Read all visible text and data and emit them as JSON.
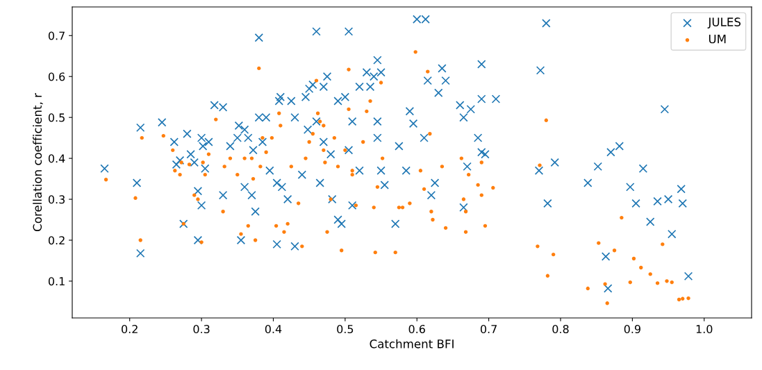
{
  "chart_data": {
    "type": "scatter",
    "xlabel": "Catchment BFI",
    "ylabel": "Corellation coefficient, r",
    "xlim": [
      0.12,
      1.066
    ],
    "ylim": [
      0.01,
      0.77
    ],
    "xticks": [
      {
        "value": 0.2,
        "label": "0.2"
      },
      {
        "value": 0.3,
        "label": "0.3"
      },
      {
        "value": 0.4,
        "label": "0.4"
      },
      {
        "value": 0.5,
        "label": "0.5"
      },
      {
        "value": 0.6,
        "label": "0.6"
      },
      {
        "value": 0.7,
        "label": "0.7"
      },
      {
        "value": 0.8,
        "label": "0.8"
      },
      {
        "value": 0.9,
        "label": "0.9"
      },
      {
        "value": 1.0,
        "label": "1.0"
      }
    ],
    "yticks": [
      0.1,
      0.2,
      0.3,
      0.4,
      0.5,
      0.6,
      0.7
    ],
    "grid": false,
    "legend": "top right",
    "series": [
      {
        "name": "JULES",
        "color": "#1f77b4",
        "marker": "cross",
        "x": [
          0.165,
          0.21,
          0.215,
          0.215,
          0.245,
          0.262,
          0.265,
          0.27,
          0.275,
          0.28,
          0.285,
          0.29,
          0.295,
          0.295,
          0.3,
          0.3,
          0.302,
          0.305,
          0.31,
          0.318,
          0.33,
          0.33,
          0.34,
          0.35,
          0.352,
          0.355,
          0.36,
          0.36,
          0.365,
          0.37,
          0.372,
          0.375,
          0.38,
          0.38,
          0.385,
          0.39,
          0.395,
          0.405,
          0.405,
          0.408,
          0.41,
          0.412,
          0.42,
          0.425,
          0.43,
          0.43,
          0.44,
          0.445,
          0.448,
          0.45,
          0.455,
          0.46,
          0.46,
          0.465,
          0.47,
          0.47,
          0.475,
          0.48,
          0.482,
          0.49,
          0.49,
          0.495,
          0.5,
          0.505,
          0.505,
          0.51,
          0.51,
          0.52,
          0.52,
          0.53,
          0.535,
          0.54,
          0.545,
          0.545,
          0.545,
          0.55,
          0.55,
          0.555,
          0.57,
          0.575,
          0.585,
          0.59,
          0.595,
          0.6,
          0.61,
          0.612,
          0.615,
          0.62,
          0.625,
          0.63,
          0.635,
          0.64,
          0.66,
          0.665,
          0.665,
          0.67,
          0.675,
          0.685,
          0.69,
          0.69,
          0.69,
          0.695,
          0.71,
          0.77,
          0.772,
          0.78,
          0.782,
          0.792,
          0.838,
          0.852,
          0.863,
          0.866,
          0.87,
          0.882,
          0.897,
          0.905,
          0.915,
          0.925,
          0.935,
          0.945,
          0.95,
          0.955,
          0.968,
          0.97,
          0.978
        ],
        "values": [
          0.375,
          0.34,
          0.475,
          0.168,
          0.488,
          0.44,
          0.385,
          0.395,
          0.24,
          0.46,
          0.41,
          0.39,
          0.2,
          0.32,
          0.285,
          0.45,
          0.43,
          0.375,
          0.44,
          0.53,
          0.525,
          0.31,
          0.43,
          0.45,
          0.48,
          0.2,
          0.47,
          0.33,
          0.45,
          0.31,
          0.42,
          0.27,
          0.695,
          0.5,
          0.44,
          0.5,
          0.37,
          0.34,
          0.19,
          0.54,
          0.55,
          0.33,
          0.3,
          0.54,
          0.5,
          0.185,
          0.36,
          0.55,
          0.47,
          0.57,
          0.58,
          0.71,
          0.49,
          0.34,
          0.44,
          0.575,
          0.6,
          0.41,
          0.3,
          0.54,
          0.25,
          0.24,
          0.55,
          0.71,
          0.42,
          0.49,
          0.285,
          0.37,
          0.575,
          0.61,
          0.575,
          0.6,
          0.64,
          0.49,
          0.45,
          0.37,
          0.61,
          0.335,
          0.24,
          0.43,
          0.37,
          0.515,
          0.485,
          0.74,
          0.45,
          0.74,
          0.59,
          0.31,
          0.34,
          0.56,
          0.62,
          0.59,
          0.53,
          0.5,
          0.28,
          0.38,
          0.52,
          0.45,
          0.545,
          0.63,
          0.415,
          0.41,
          0.545,
          0.37,
          0.615,
          0.73,
          0.29,
          0.39,
          0.34,
          0.38,
          0.16,
          0.082,
          0.415,
          0.43,
          0.33,
          0.29,
          0.375,
          0.245,
          0.295,
          0.52,
          0.3,
          0.215,
          0.325,
          0.29,
          0.112
        ]
      },
      {
        "name": "UM",
        "color": "#ff7f0e",
        "marker": "circle",
        "x": [
          0.167,
          0.208,
          0.215,
          0.217,
          0.247,
          0.26,
          0.263,
          0.27,
          0.272,
          0.275,
          0.283,
          0.29,
          0.295,
          0.3,
          0.302,
          0.305,
          0.31,
          0.32,
          0.33,
          0.332,
          0.34,
          0.35,
          0.355,
          0.36,
          0.365,
          0.37,
          0.372,
          0.375,
          0.38,
          0.382,
          0.385,
          0.39,
          0.398,
          0.404,
          0.408,
          0.41,
          0.415,
          0.42,
          0.425,
          0.435,
          0.44,
          0.445,
          0.45,
          0.455,
          0.46,
          0.462,
          0.465,
          0.47,
          0.47,
          0.472,
          0.475,
          0.48,
          0.485,
          0.49,
          0.495,
          0.5,
          0.505,
          0.505,
          0.51,
          0.51,
          0.515,
          0.525,
          0.53,
          0.535,
          0.54,
          0.542,
          0.545,
          0.55,
          0.552,
          0.57,
          0.575,
          0.58,
          0.59,
          0.598,
          0.605,
          0.61,
          0.615,
          0.618,
          0.62,
          0.622,
          0.635,
          0.64,
          0.662,
          0.665,
          0.668,
          0.668,
          0.672,
          0.685,
          0.69,
          0.69,
          0.695,
          0.706,
          0.768,
          0.771,
          0.78,
          0.782,
          0.79,
          0.838,
          0.853,
          0.862,
          0.865,
          0.875,
          0.885,
          0.897,
          0.902,
          0.912,
          0.925,
          0.935,
          0.942,
          0.948,
          0.955,
          0.965,
          0.97,
          0.978
        ],
        "values": [
          0.348,
          0.303,
          0.2,
          0.45,
          0.455,
          0.42,
          0.37,
          0.36,
          0.39,
          0.24,
          0.385,
          0.31,
          0.3,
          0.195,
          0.39,
          0.36,
          0.41,
          0.495,
          0.27,
          0.38,
          0.4,
          0.36,
          0.215,
          0.4,
          0.235,
          0.4,
          0.35,
          0.2,
          0.62,
          0.38,
          0.45,
          0.415,
          0.45,
          0.235,
          0.51,
          0.48,
          0.22,
          0.24,
          0.38,
          0.29,
          0.185,
          0.4,
          0.44,
          0.46,
          0.59,
          0.51,
          0.49,
          0.42,
          0.48,
          0.39,
          0.22,
          0.3,
          0.45,
          0.38,
          0.175,
          0.42,
          0.52,
          0.617,
          0.37,
          0.36,
          0.285,
          0.44,
          0.515,
          0.54,
          0.28,
          0.17,
          0.33,
          0.585,
          0.4,
          0.17,
          0.28,
          0.28,
          0.29,
          0.66,
          0.37,
          0.325,
          0.612,
          0.46,
          0.27,
          0.25,
          0.38,
          0.23,
          0.4,
          0.3,
          0.27,
          0.22,
          0.36,
          0.335,
          0.31,
          0.39,
          0.235,
          0.328,
          0.185,
          0.383,
          0.493,
          0.113,
          0.165,
          0.082,
          0.193,
          0.093,
          0.046,
          0.175,
          0.255,
          0.097,
          0.155,
          0.133,
          0.117,
          0.095,
          0.19,
          0.1,
          0.097,
          0.055,
          0.057,
          0.058
        ]
      }
    ]
  }
}
